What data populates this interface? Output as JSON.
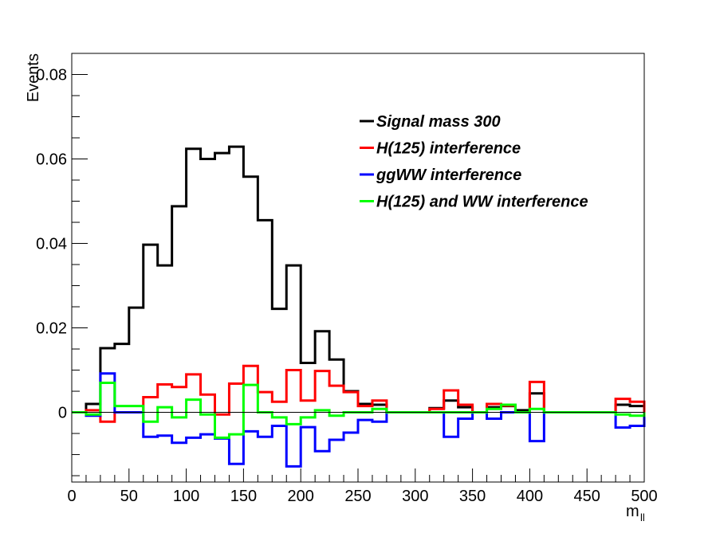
{
  "chart_data": {
    "type": "histogram",
    "xlabel": "m",
    "xlabel_subscript": "ll",
    "ylabel": "Events",
    "xlim": [
      0,
      500
    ],
    "ylim": [
      -0.0165,
      0.085
    ],
    "bin_edges": [
      0,
      12.5,
      25,
      37.5,
      50,
      62.5,
      75,
      87.5,
      100,
      112.5,
      125,
      137.5,
      150,
      162.5,
      175,
      187.5,
      200,
      212.5,
      225,
      237.5,
      250,
      262.5,
      275,
      287.5,
      300,
      312.5,
      325,
      337.5,
      350,
      362.5,
      375,
      387.5,
      400,
      412.5,
      425,
      437.5,
      450,
      462.5,
      475,
      487.5,
      500
    ],
    "x_ticks": [
      0,
      50,
      100,
      150,
      200,
      250,
      300,
      350,
      400,
      450,
      500
    ],
    "x_tick_labels": [
      "0",
      "50",
      "100",
      "150",
      "200",
      "250",
      "300",
      "350",
      "400",
      "450",
      "500"
    ],
    "y_ticks": [
      0,
      0.02,
      0.04,
      0.06,
      0.08
    ],
    "y_tick_labels": [
      "0",
      "0.02",
      "0.04",
      "0.06",
      "0.08"
    ],
    "zero_line": true,
    "grid": false,
    "legend_position": "top-right",
    "series": [
      {
        "name": "Signal mass 300",
        "color": "#000000",
        "values": [
          0,
          0.002,
          0.0152,
          0.0162,
          0.0248,
          0.0397,
          0.0348,
          0.0488,
          0.0624,
          0.06,
          0.0614,
          0.0629,
          0.0558,
          0.0455,
          0.0245,
          0.0348,
          0.0117,
          0.0192,
          0.0125,
          0.005,
          0.002,
          0.0018,
          0,
          0,
          0,
          0.001,
          0.0028,
          0.0012,
          0,
          0.0012,
          0.0015,
          0.0005,
          0.0045,
          0,
          0,
          0,
          0,
          0,
          0.0018,
          0.0015
        ]
      },
      {
        "name": "H(125) interference",
        "color": "#ff0000",
        "values": [
          0,
          0.0005,
          -0.0022,
          0,
          0,
          0.0036,
          0.0066,
          0.006,
          0.009,
          0.0042,
          -0.0005,
          0.0068,
          0.011,
          0.0048,
          0.0025,
          0.01,
          0.0028,
          0.0098,
          0.0063,
          0.0048,
          0.0015,
          0.0028,
          0,
          0,
          0,
          0.0008,
          0.0052,
          0.0018,
          0,
          0.002,
          0.0016,
          0,
          0.0072,
          0,
          0,
          0,
          0,
          0,
          0.0032,
          0.0025
        ]
      },
      {
        "name": "ggWW interference",
        "color": "#0000ff",
        "values": [
          0,
          -0.0008,
          0.0092,
          0,
          0,
          -0.0058,
          -0.0055,
          -0.0072,
          -0.006,
          -0.0052,
          -0.0062,
          -0.0122,
          -0.0045,
          -0.0058,
          -0.0032,
          -0.0128,
          -0.0035,
          -0.0092,
          -0.0065,
          -0.0048,
          -0.0018,
          -0.0022,
          0,
          0,
          0,
          0,
          -0.0058,
          -0.0015,
          0,
          -0.0015,
          0,
          0,
          -0.0068,
          0,
          0,
          0,
          0,
          0,
          -0.0036,
          -0.0032
        ]
      },
      {
        "name": "H(125) and WW interference",
        "color": "#00ff00",
        "values": [
          0,
          -0.0005,
          0.007,
          0.0015,
          0.0015,
          -0.0022,
          0.0012,
          -0.0012,
          0.003,
          -0.0005,
          -0.006,
          -0.0052,
          0.0065,
          0,
          -0.0012,
          -0.0028,
          -0.0012,
          0.0005,
          -0.0008,
          0,
          0,
          0.0008,
          0,
          0,
          0,
          0,
          0,
          0,
          0,
          0.0008,
          0.0018,
          0,
          0.0008,
          0,
          0,
          0,
          0,
          0,
          -0.0005,
          -0.0008
        ]
      }
    ]
  }
}
